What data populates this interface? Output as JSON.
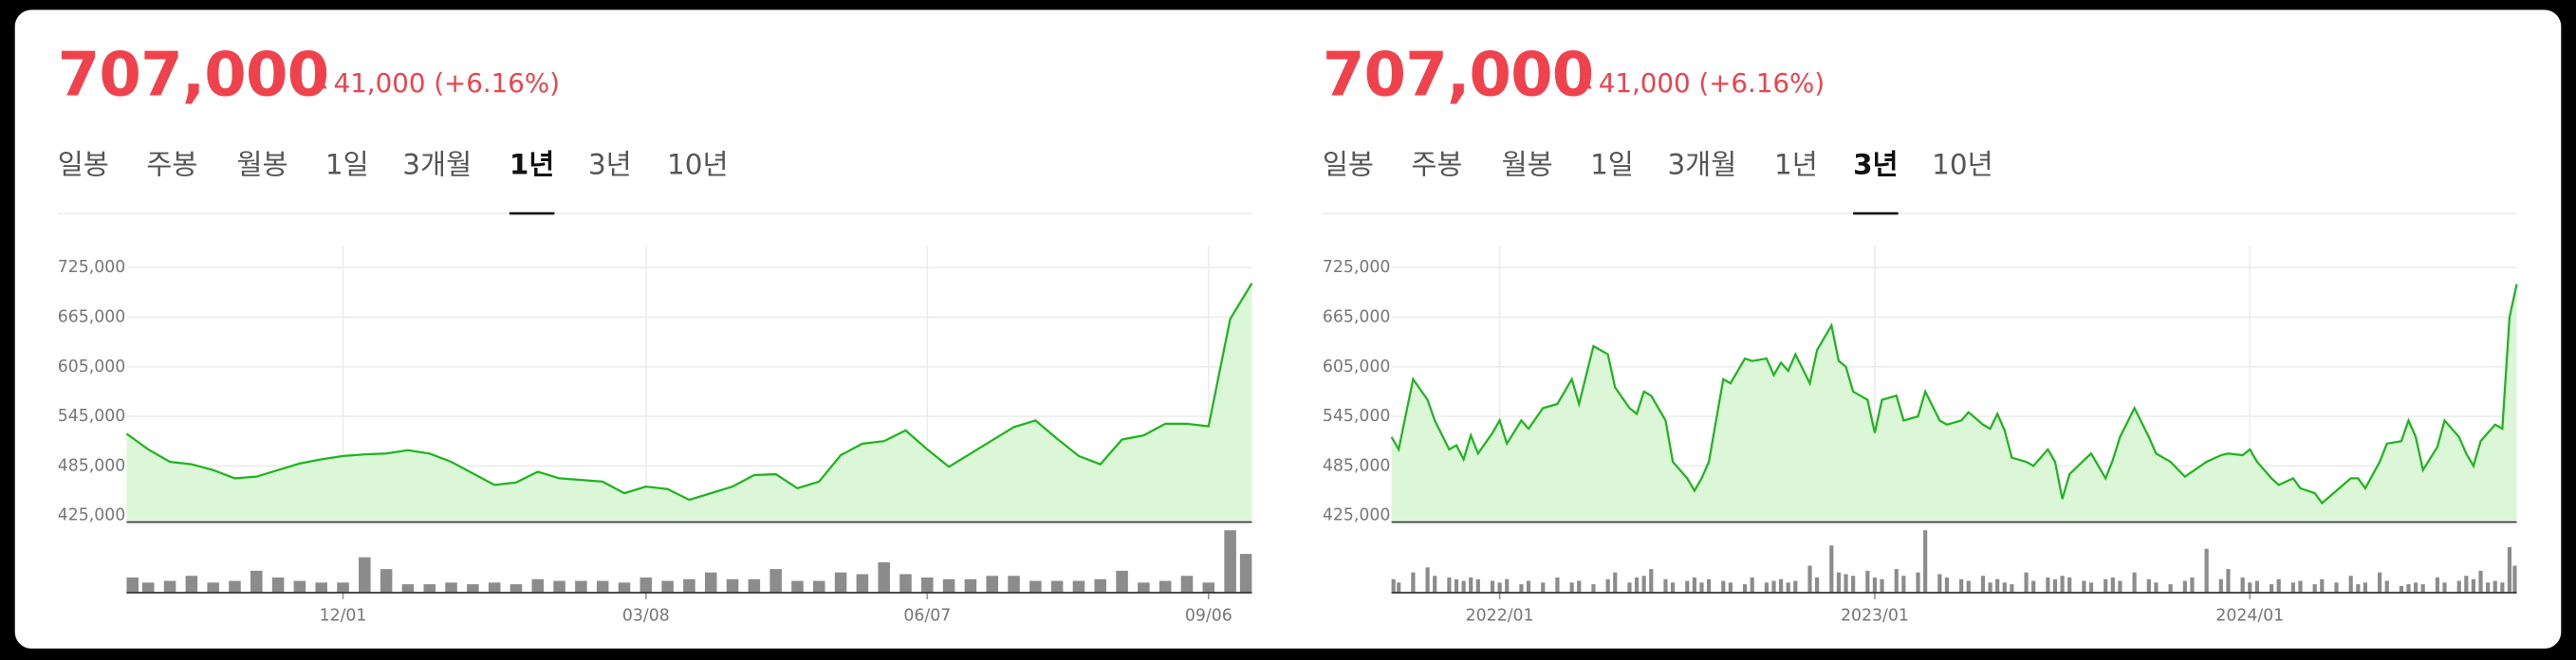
{
  "panels": [
    {
      "price": "707,000",
      "change": "41,000 (+6.16%)",
      "tabs": [
        "일봉",
        "주봉",
        "월봉",
        "1일",
        "3개월",
        "1년",
        "3년",
        "10년"
      ],
      "active_tab": 5,
      "chart_data": {
        "type": "line",
        "color": "#1fb51f",
        "fill": "#dcf6d8",
        "volume_color": "#8c8c8c",
        "grid": true,
        "xlim": [
          0,
          52
        ],
        "ylim": [
          425000,
          725000
        ],
        "yticks": [
          {
            "value": 425000,
            "label": "425,000"
          },
          {
            "value": 485000,
            "label": "485,000"
          },
          {
            "value": 545000,
            "label": "545,000"
          },
          {
            "value": 605000,
            "label": "605,000"
          },
          {
            "value": 665000,
            "label": "665,000"
          },
          {
            "value": 725000,
            "label": "725,000"
          }
        ],
        "xticks": [
          {
            "value": 10,
            "label": "12/01"
          },
          {
            "value": 24,
            "label": "03/08"
          },
          {
            "value": 37,
            "label": "06/07"
          },
          {
            "value": 50,
            "label": "09/06"
          }
        ],
        "x": [
          0,
          1,
          2,
          3,
          4,
          5,
          6,
          7,
          8,
          9,
          10,
          11,
          12,
          13,
          14,
          15,
          16,
          17,
          18,
          19,
          20,
          21,
          22,
          23,
          24,
          25,
          26,
          27,
          28,
          29,
          30,
          31,
          32,
          33,
          34,
          35,
          36,
          37,
          38,
          39,
          40,
          41,
          42,
          43,
          44,
          45,
          46,
          47,
          48,
          49,
          50,
          51,
          52
        ],
        "values": [
          524000,
          505000,
          490000,
          487000,
          480000,
          470000,
          472000,
          480000,
          488000,
          493000,
          497000,
          499000,
          500000,
          504000,
          500000,
          490000,
          476000,
          462000,
          465000,
          478000,
          470000,
          468000,
          466000,
          452000,
          460000,
          457000,
          444000,
          452000,
          460000,
          474000,
          475000,
          458000,
          466000,
          498000,
          512000,
          515000,
          528000,
          505000,
          484000,
          500000,
          516000,
          532000,
          540000,
          518000,
          497000,
          487000,
          517000,
          522000,
          536000,
          536000,
          533000,
          663000,
          706000
        ],
        "volume": [
          9,
          6,
          7,
          10,
          6,
          7,
          13,
          9,
          7,
          6,
          6,
          21,
          14,
          5,
          5,
          6,
          5,
          6,
          5,
          8,
          7,
          7,
          7,
          6,
          9,
          7,
          8,
          12,
          8,
          8,
          14,
          7,
          7,
          12,
          11,
          18,
          11,
          9,
          8,
          8,
          10,
          10,
          7,
          7,
          7,
          8,
          13,
          6,
          7,
          10,
          6,
          37,
          23
        ]
      }
    },
    {
      "price": "707,000",
      "change": "41,000 (+6.16%)",
      "tabs": [
        "일봉",
        "주봉",
        "월봉",
        "1일",
        "3개월",
        "1년",
        "3년",
        "10년"
      ],
      "active_tab": 6,
      "chart_data": {
        "type": "line",
        "color": "#1fb51f",
        "fill": "#dcf6d8",
        "volume_color": "#8c8c8c",
        "grid": true,
        "xlim": [
          0,
          156
        ],
        "ylim": [
          425000,
          725000
        ],
        "yticks": [
          {
            "value": 425000,
            "label": "425,000"
          },
          {
            "value": 485000,
            "label": "485,000"
          },
          {
            "value": 545000,
            "label": "545,000"
          },
          {
            "value": 605000,
            "label": "605,000"
          },
          {
            "value": 665000,
            "label": "665,000"
          },
          {
            "value": 725000,
            "label": "725,000"
          }
        ],
        "xticks": [
          {
            "value": 15,
            "label": "2022/01"
          },
          {
            "value": 67,
            "label": "2023/01"
          },
          {
            "value": 119,
            "label": "2024/01"
          }
        ],
        "x": [
          0,
          1,
          3,
          5,
          6,
          8,
          9,
          10,
          11,
          12,
          14,
          15,
          16,
          18,
          19,
          21,
          23,
          25,
          26,
          28,
          30,
          31,
          33,
          34,
          35,
          36,
          38,
          39,
          41,
          42,
          43,
          44,
          46,
          47,
          49,
          50,
          52,
          53,
          54,
          55,
          56,
          58,
          59,
          61,
          62,
          63,
          64,
          66,
          67,
          68,
          70,
          71,
          73,
          74,
          76,
          77,
          79,
          80,
          82,
          83,
          84,
          85,
          86,
          88,
          89,
          91,
          92,
          93,
          94,
          96,
          97,
          99,
          100,
          101,
          103,
          105,
          106,
          108,
          110,
          111,
          113,
          115,
          116,
          118,
          119,
          120,
          122,
          123,
          125,
          126,
          128,
          129,
          131,
          133,
          134,
          135,
          137,
          138,
          140,
          141,
          142,
          143,
          145,
          146,
          148,
          149,
          150,
          151,
          152,
          153,
          154,
          155,
          156
        ],
        "values": [
          520000,
          505000,
          590000,
          565000,
          540000,
          505000,
          510000,
          493000,
          522000,
          500000,
          525000,
          540000,
          512000,
          540000,
          530000,
          555000,
          560000,
          590000,
          560000,
          630000,
          620000,
          580000,
          555000,
          548000,
          575000,
          570000,
          540000,
          490000,
          470000,
          455000,
          470000,
          490000,
          590000,
          585000,
          615000,
          612000,
          615000,
          595000,
          610000,
          600000,
          620000,
          585000,
          625000,
          655000,
          612000,
          605000,
          575000,
          565000,
          525000,
          565000,
          570000,
          540000,
          545000,
          575000,
          540000,
          535000,
          540000,
          550000,
          535000,
          530000,
          548000,
          528000,
          495000,
          490000,
          485000,
          505000,
          490000,
          445000,
          475000,
          492000,
          500000,
          470000,
          492000,
          520000,
          555000,
          520000,
          500000,
          490000,
          472000,
          478000,
          490000,
          498000,
          500000,
          498000,
          505000,
          490000,
          470000,
          462000,
          470000,
          458000,
          452000,
          440000,
          455000,
          470000,
          470000,
          458000,
          490000,
          512000,
          515000,
          540000,
          520000,
          480000,
          508000,
          540000,
          520000,
          500000,
          485000,
          515000,
          525000,
          535000,
          530000,
          665000,
          705000
        ],
        "volume": [
          8,
          6,
          12,
          15,
          10,
          9,
          8,
          7,
          9,
          8,
          7,
          6,
          8,
          5,
          7,
          6,
          9,
          6,
          7,
          5,
          8,
          12,
          6,
          9,
          10,
          14,
          8,
          6,
          7,
          9,
          6,
          8,
          7,
          6,
          5,
          9,
          6,
          7,
          8,
          6,
          7,
          16,
          9,
          28,
          12,
          11,
          10,
          13,
          9,
          8,
          14,
          10,
          12,
          37,
          11,
          9,
          8,
          7,
          10,
          6,
          8,
          6,
          5,
          12,
          7,
          9,
          8,
          10,
          9,
          7,
          6,
          8,
          9,
          7,
          12,
          8,
          6,
          5,
          7,
          9,
          26,
          8,
          14,
          9,
          6,
          7,
          5,
          8,
          6,
          7,
          5,
          8,
          6,
          10,
          5,
          6,
          12,
          7,
          4,
          5,
          6,
          5,
          9,
          6,
          7,
          10,
          8,
          13,
          6,
          7,
          6,
          27,
          16
        ]
      }
    }
  ]
}
